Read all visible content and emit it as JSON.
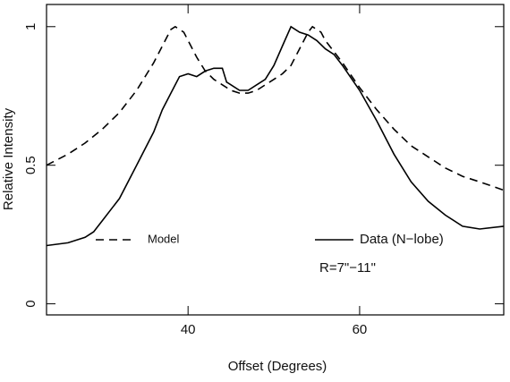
{
  "chart_data": {
    "type": "line",
    "xlabel": "Offset (Degrees)",
    "ylabel": "Relative Intensity",
    "annotation": "R=7\"−11\"",
    "xlim": [
      23.5,
      76.8
    ],
    "ylim": [
      -0.04,
      1.08
    ],
    "xticks": [
      40,
      60
    ],
    "yticks": [
      0,
      0.5,
      1
    ],
    "series": [
      {
        "name": "Model",
        "color": "#000000",
        "style": "dashed",
        "x": [
          23.5,
          26,
          28,
          30,
          32,
          34,
          36,
          37,
          38,
          38.5,
          39.5,
          40,
          41,
          42,
          43,
          44,
          45,
          46,
          47,
          48,
          49,
          50,
          51,
          52,
          53,
          54,
          54.5,
          55.5,
          56,
          57,
          58,
          60,
          62,
          64,
          66,
          68,
          70,
          72,
          74,
          76.8
        ],
        "values": [
          0.5,
          0.54,
          0.58,
          0.63,
          0.69,
          0.77,
          0.87,
          0.93,
          0.99,
          1.0,
          0.98,
          0.95,
          0.89,
          0.84,
          0.81,
          0.79,
          0.77,
          0.76,
          0.76,
          0.77,
          0.79,
          0.81,
          0.83,
          0.86,
          0.92,
          0.98,
          1.0,
          0.98,
          0.95,
          0.91,
          0.87,
          0.78,
          0.7,
          0.63,
          0.57,
          0.53,
          0.49,
          0.46,
          0.44,
          0.41
        ]
      },
      {
        "name": "Data (N−lobe)",
        "color": "#000000",
        "style": "solid",
        "x": [
          23.5,
          26,
          28,
          29,
          30,
          32,
          34,
          36,
          37,
          38,
          39,
          40,
          41,
          42,
          43,
          44,
          44.5,
          45,
          46,
          47,
          48,
          49,
          50,
          51,
          52,
          53,
          54,
          55,
          56,
          57,
          58,
          60,
          62,
          64,
          66,
          68,
          70,
          72,
          74,
          76.8
        ],
        "values": [
          0.21,
          0.22,
          0.24,
          0.26,
          0.3,
          0.38,
          0.5,
          0.62,
          0.7,
          0.76,
          0.82,
          0.83,
          0.82,
          0.84,
          0.85,
          0.85,
          0.8,
          0.79,
          0.77,
          0.77,
          0.79,
          0.81,
          0.86,
          0.93,
          1.0,
          0.98,
          0.97,
          0.95,
          0.92,
          0.9,
          0.86,
          0.77,
          0.66,
          0.54,
          0.44,
          0.37,
          0.32,
          0.28,
          0.27,
          0.28
        ]
      }
    ]
  }
}
